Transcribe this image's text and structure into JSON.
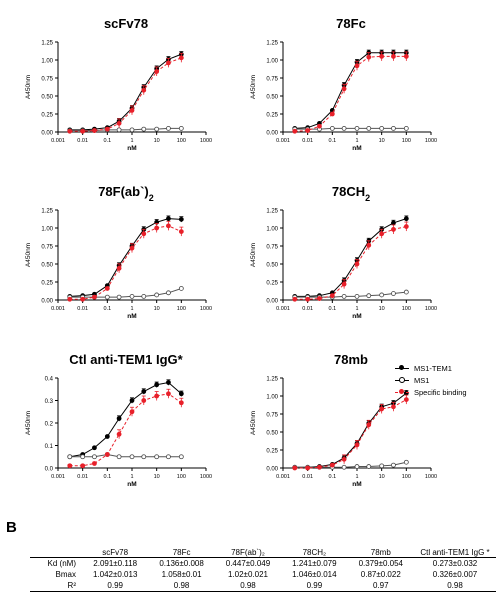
{
  "panel_b_label": "B",
  "legend": {
    "items": [
      {
        "label": "MS1-TEM1",
        "color": "#000000",
        "marker": "filled"
      },
      {
        "label": "MS1",
        "color": "#000000",
        "marker": "open"
      },
      {
        "label": "Specific binding",
        "color": "#e8202a",
        "marker": "filled"
      }
    ]
  },
  "colors": {
    "ms1_tem1": "#000000",
    "ms1": "#555555",
    "specific": "#e8202a"
  },
  "chart_data": [
    {
      "type": "line",
      "title": "scFv78",
      "xlabel": "nM",
      "ylabel": "A450nm",
      "x_scale": "log",
      "xlim": [
        0.001,
        1000
      ],
      "ylim": [
        0,
        1.25
      ],
      "x_ticks": [
        "0.001",
        "0.01",
        "0.1",
        "1",
        "10",
        "100",
        "1000"
      ],
      "y_ticks": [
        "0.00",
        "0.25",
        "0.50",
        "0.75",
        "1.00",
        "1.25"
      ],
      "x": [
        0.003,
        0.01,
        0.03,
        0.1,
        0.3,
        1,
        3,
        10,
        30,
        100
      ],
      "series": [
        {
          "name": "MS1-TEM1",
          "values": [
            0.03,
            0.03,
            0.04,
            0.06,
            0.15,
            0.33,
            0.62,
            0.88,
            1.01,
            1.08
          ]
        },
        {
          "name": "MS1",
          "values": [
            0.02,
            0.02,
            0.02,
            0.03,
            0.03,
            0.03,
            0.04,
            0.04,
            0.05,
            0.05
          ]
        },
        {
          "name": "Specific binding",
          "values": [
            0.01,
            0.01,
            0.02,
            0.04,
            0.12,
            0.3,
            0.58,
            0.84,
            0.96,
            1.03
          ]
        }
      ]
    },
    {
      "type": "line",
      "title": "78Fc",
      "xlabel": "nM",
      "ylabel": "A450nm",
      "x_scale": "log",
      "xlim": [
        0.001,
        1000
      ],
      "ylim": [
        0,
        1.25
      ],
      "x_ticks": [
        "0.001",
        "0.01",
        "0.1",
        "1",
        "10",
        "100",
        "1000"
      ],
      "y_ticks": [
        "0.00",
        "0.25",
        "0.50",
        "0.75",
        "1.00",
        "1.25"
      ],
      "x": [
        0.003,
        0.01,
        0.03,
        0.1,
        0.3,
        1,
        3,
        10,
        30,
        100
      ],
      "series": [
        {
          "name": "MS1-TEM1",
          "values": [
            0.05,
            0.06,
            0.12,
            0.3,
            0.65,
            0.97,
            1.1,
            1.1,
            1.1,
            1.1
          ]
        },
        {
          "name": "MS1",
          "values": [
            0.04,
            0.04,
            0.04,
            0.05,
            0.05,
            0.05,
            0.05,
            0.05,
            0.05,
            0.05
          ]
        },
        {
          "name": "Specific binding",
          "values": [
            0.01,
            0.02,
            0.08,
            0.25,
            0.6,
            0.92,
            1.04,
            1.05,
            1.05,
            1.05
          ]
        }
      ]
    },
    {
      "type": "line",
      "title": "78F(ab`)",
      "title_sub": "2",
      "xlabel": "nM",
      "ylabel": "A450nm",
      "x_scale": "log",
      "xlim": [
        0.001,
        1000
      ],
      "ylim": [
        0,
        1.25
      ],
      "x_ticks": [
        "0.001",
        "0.01",
        "0.1",
        "1",
        "10",
        "100",
        "1000"
      ],
      "y_ticks": [
        "0.00",
        "0.25",
        "0.50",
        "0.75",
        "1.00",
        "1.25"
      ],
      "x": [
        0.003,
        0.01,
        0.03,
        0.1,
        0.3,
        1,
        3,
        10,
        30,
        100
      ],
      "series": [
        {
          "name": "MS1-TEM1",
          "values": [
            0.05,
            0.06,
            0.08,
            0.2,
            0.48,
            0.75,
            0.98,
            1.08,
            1.13,
            1.12
          ]
        },
        {
          "name": "MS1",
          "values": [
            0.04,
            0.04,
            0.04,
            0.04,
            0.04,
            0.05,
            0.05,
            0.07,
            0.1,
            0.16
          ]
        },
        {
          "name": "Specific binding",
          "values": [
            0.01,
            0.01,
            0.04,
            0.16,
            0.44,
            0.72,
            0.92,
            1.0,
            1.03,
            0.95
          ]
        }
      ]
    },
    {
      "type": "line",
      "title": "78CH",
      "title_sub": "2",
      "xlabel": "nM",
      "ylabel": "A450nm",
      "x_scale": "log",
      "xlim": [
        0.001,
        1000
      ],
      "ylim": [
        0,
        1.25
      ],
      "x_ticks": [
        "0.001",
        "0.01",
        "0.1",
        "1",
        "10",
        "100",
        "1000"
      ],
      "y_ticks": [
        "0.00",
        "0.25",
        "0.50",
        "0.75",
        "1.00",
        "1.25"
      ],
      "x": [
        0.003,
        0.01,
        0.03,
        0.1,
        0.3,
        1,
        3,
        10,
        30,
        100
      ],
      "series": [
        {
          "name": "MS1-TEM1",
          "values": [
            0.05,
            0.05,
            0.06,
            0.1,
            0.27,
            0.55,
            0.82,
            0.98,
            1.07,
            1.13
          ]
        },
        {
          "name": "MS1",
          "values": [
            0.04,
            0.04,
            0.04,
            0.04,
            0.05,
            0.05,
            0.06,
            0.07,
            0.09,
            0.11
          ]
        },
        {
          "name": "Specific binding",
          "values": [
            0.01,
            0.01,
            0.02,
            0.06,
            0.22,
            0.5,
            0.76,
            0.92,
            0.98,
            1.02
          ]
        }
      ]
    },
    {
      "type": "line",
      "title": "Ctl anti-TEM1 IgG*",
      "xlabel": "nM",
      "ylabel": "A450nm",
      "x_scale": "log",
      "xlim": [
        0.001,
        1000
      ],
      "ylim": [
        0,
        0.4
      ],
      "x_ticks": [
        "0.001",
        "0.01",
        "0.1",
        "1",
        "10",
        "100",
        "1000"
      ],
      "y_ticks": [
        "0.0",
        "0.1",
        "0.2",
        "0.3",
        "0.4"
      ],
      "x": [
        0.003,
        0.01,
        0.03,
        0.1,
        0.3,
        1,
        3,
        10,
        30,
        100
      ],
      "series": [
        {
          "name": "MS1-TEM1",
          "values": [
            0.05,
            0.06,
            0.09,
            0.14,
            0.22,
            0.3,
            0.34,
            0.37,
            0.38,
            0.33
          ]
        },
        {
          "name": "MS1",
          "values": [
            0.05,
            0.05,
            0.05,
            0.06,
            0.05,
            0.05,
            0.05,
            0.05,
            0.05,
            0.05
          ]
        },
        {
          "name": "Specific binding",
          "values": [
            0.01,
            0.01,
            0.02,
            0.06,
            0.15,
            0.25,
            0.3,
            0.32,
            0.33,
            0.29
          ]
        }
      ]
    },
    {
      "type": "line",
      "title": "78mb",
      "xlabel": "nM",
      "ylabel": "A450nm",
      "x_scale": "log",
      "xlim": [
        0.001,
        1000
      ],
      "ylim": [
        0,
        1.25
      ],
      "x_ticks": [
        "0.001",
        "0.01",
        "0.1",
        "1",
        "10",
        "100",
        "1000"
      ],
      "y_ticks": [
        "0.00",
        "0.25",
        "0.50",
        "0.75",
        "1.00",
        "1.25"
      ],
      "x": [
        0.003,
        0.01,
        0.03,
        0.1,
        0.3,
        1,
        3,
        10,
        30,
        100
      ],
      "series": [
        {
          "name": "MS1-TEM1",
          "values": [
            0.01,
            0.01,
            0.02,
            0.05,
            0.14,
            0.34,
            0.62,
            0.85,
            0.9,
            1.04
          ]
        },
        {
          "name": "MS1",
          "values": [
            0.01,
            0.01,
            0.01,
            0.01,
            0.01,
            0.02,
            0.02,
            0.03,
            0.04,
            0.08
          ]
        },
        {
          "name": "Specific binding",
          "values": [
            0.0,
            0.0,
            0.01,
            0.04,
            0.12,
            0.32,
            0.6,
            0.82,
            0.85,
            0.95
          ]
        }
      ]
    }
  ],
  "table": {
    "columns": [
      "",
      "scFv78",
      "78Fc",
      "78F(ab`)₂",
      "78CH₂",
      "78mb",
      "Ctl anti-TEM1 IgG *"
    ],
    "rows": [
      [
        "Kd (nM)",
        "2.091±0.118",
        "0.136±0.008",
        "0.447±0.049",
        "1.241±0.079",
        "0.379±0.054",
        "0.273±0.032"
      ],
      [
        "Bmax",
        "1.042±0.013",
        "1.058±0.01",
        "1.02±0.021",
        "1.046±0.014",
        "0.87±0.022",
        "0.326±0.007"
      ],
      [
        "R²",
        "0.99",
        "0.98",
        "0.98",
        "0.99",
        "0.97",
        "0.98"
      ]
    ]
  }
}
